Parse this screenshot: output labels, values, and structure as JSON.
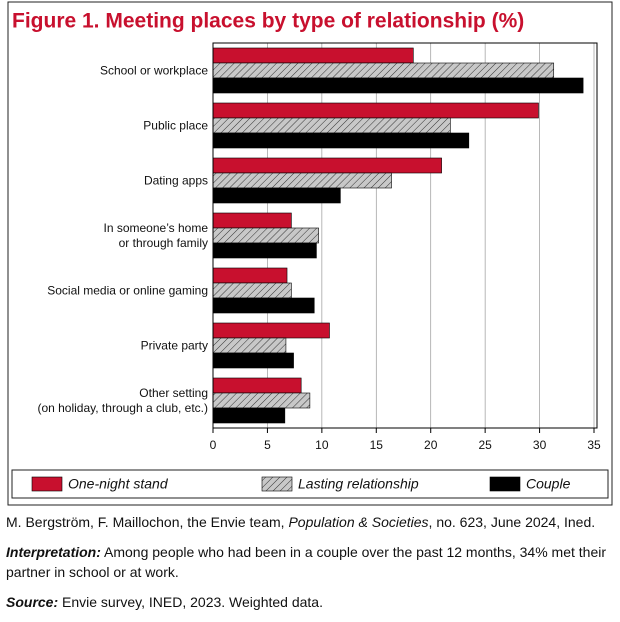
{
  "chart_data": {
    "type": "barh",
    "title": "Figure 1. Meeting places by type of relationship (%)",
    "categories": [
      "School or workplace",
      "Public place",
      "Dating apps",
      "In someone’s home\nor through family",
      "Social media or online gaming",
      "Private party",
      "Other setting\n(on holiday, through a club, etc.)"
    ],
    "series": [
      {
        "name": "One-night stand",
        "color": "#c8102e",
        "values": [
          18.4,
          29.9,
          21.0,
          7.2,
          6.8,
          10.7,
          8.1
        ]
      },
      {
        "name": "Lasting relationship",
        "color": "#c8c8c8",
        "hatch": true,
        "values": [
          31.3,
          21.8,
          16.4,
          9.7,
          7.2,
          6.7,
          8.9
        ]
      },
      {
        "name": "Couple",
        "color": "#000000",
        "values": [
          34,
          23.5,
          11.7,
          9.5,
          9.3,
          7.4,
          6.6
        ]
      }
    ],
    "xlim": [
      0,
      35
    ],
    "xticks": [
      0,
      5,
      10,
      15,
      20,
      25,
      30,
      35
    ],
    "grid": true,
    "legend": "bottom"
  },
  "notes": {
    "credit": [
      "M. Bergström, F. Maillochon, the Envie team, ",
      "Population & Societies",
      ", no. 623, June 2024, Ined."
    ],
    "interpretation": [
      "Interpretation:",
      " Among people who had been in a couple over the past 12 months, 34% met their partner in school or at work."
    ],
    "source": [
      "Source:",
      " Envie survey, INED, 2023. Weighted data."
    ]
  }
}
